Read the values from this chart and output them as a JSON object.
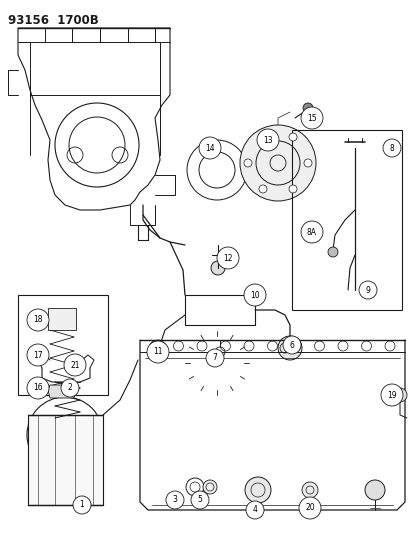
{
  "title": "93156  1700B",
  "bg": "#ffffff",
  "lc": "#1a1a1a",
  "fig_w": 4.14,
  "fig_h": 5.33,
  "dpi": 100
}
